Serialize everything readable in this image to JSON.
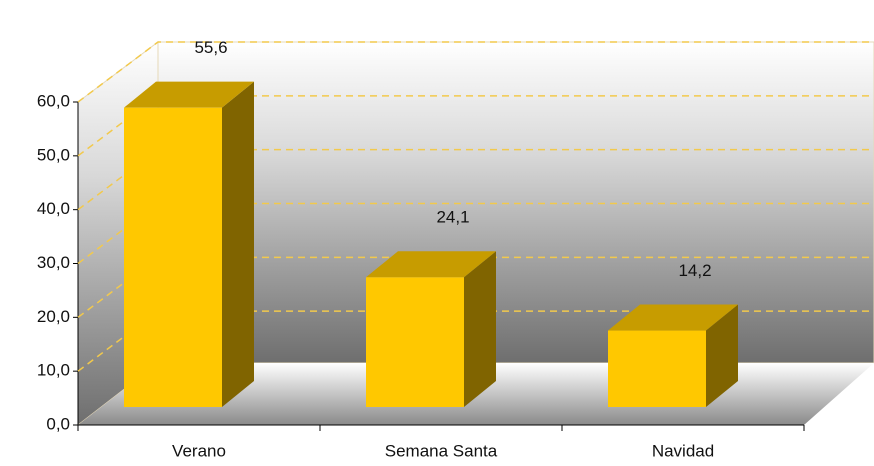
{
  "chart_data": {
    "type": "bar3d",
    "categories": [
      "Verano",
      "Semana Santa",
      "Navidad"
    ],
    "values": [
      55.6,
      24.1,
      14.2
    ],
    "value_labels": [
      "55,6",
      "24,1",
      "14,2"
    ],
    "color": "#ffc800",
    "ylim": [
      0,
      60
    ],
    "yticks": [
      {
        "value": 0,
        "label": "0,0"
      },
      {
        "value": 10,
        "label": "10,0"
      },
      {
        "value": 20,
        "label": "20,0"
      },
      {
        "value": 30,
        "label": "30,0"
      },
      {
        "value": 40,
        "label": "40,0"
      },
      {
        "value": 50,
        "label": "50,0"
      },
      {
        "value": 60,
        "label": "60,0"
      }
    ],
    "grid": true
  }
}
